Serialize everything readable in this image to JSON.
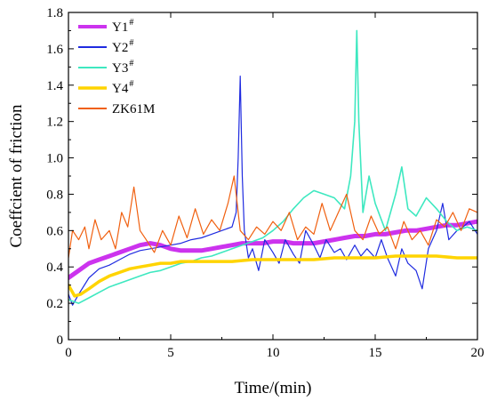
{
  "chart_data": {
    "type": "line",
    "title": "",
    "xlabel": "Time/(min)",
    "ylabel": "Coeffcient of friction",
    "xlim": [
      0,
      20
    ],
    "ylim": [
      0,
      1.8
    ],
    "x_ticks": [
      0,
      5,
      10,
      15,
      20
    ],
    "x_tick_labels": [
      "0",
      "5",
      "10",
      "15",
      "20"
    ],
    "y_ticks": [
      0,
      0.2,
      0.4,
      0.6,
      0.8,
      1.0,
      1.2,
      1.4,
      1.6,
      1.8
    ],
    "y_tick_labels": [
      "0",
      "0.2",
      "0.4",
      "0.6",
      "0.8",
      "1.0",
      "1.2",
      "1.4",
      "1.6",
      "1.8"
    ],
    "grid": false,
    "legend_position": "top-left",
    "series": [
      {
        "name": "Y1",
        "sup": "#",
        "color": "#cc33ee",
        "width": 5,
        "points": [
          [
            0,
            0.34
          ],
          [
            0.5,
            0.38
          ],
          [
            1,
            0.42
          ],
          [
            1.5,
            0.44
          ],
          [
            2,
            0.46
          ],
          [
            2.5,
            0.48
          ],
          [
            3,
            0.5
          ],
          [
            3.5,
            0.52
          ],
          [
            4,
            0.53
          ],
          [
            4.5,
            0.52
          ],
          [
            5,
            0.5
          ],
          [
            5.5,
            0.49
          ],
          [
            6,
            0.49
          ],
          [
            6.5,
            0.49
          ],
          [
            7,
            0.5
          ],
          [
            7.5,
            0.51
          ],
          [
            8,
            0.52
          ],
          [
            8.5,
            0.53
          ],
          [
            9,
            0.53
          ],
          [
            9.5,
            0.53
          ],
          [
            10,
            0.54
          ],
          [
            10.5,
            0.54
          ],
          [
            11,
            0.53
          ],
          [
            11.5,
            0.53
          ],
          [
            12,
            0.53
          ],
          [
            12.5,
            0.54
          ],
          [
            13,
            0.55
          ],
          [
            13.5,
            0.56
          ],
          [
            14,
            0.57
          ],
          [
            14.5,
            0.57
          ],
          [
            15,
            0.58
          ],
          [
            15.5,
            0.58
          ],
          [
            16,
            0.59
          ],
          [
            16.5,
            0.6
          ],
          [
            17,
            0.6
          ],
          [
            17.5,
            0.61
          ],
          [
            18,
            0.62
          ],
          [
            18.5,
            0.63
          ],
          [
            19,
            0.63
          ],
          [
            19.5,
            0.64
          ],
          [
            20,
            0.65
          ]
        ]
      },
      {
        "name": "Y2",
        "sup": "#",
        "color": "#1f2be0",
        "width": 1.2,
        "points": [
          [
            0,
            0.25
          ],
          [
            0.2,
            0.19
          ],
          [
            0.5,
            0.25
          ],
          [
            1,
            0.34
          ],
          [
            1.5,
            0.39
          ],
          [
            2,
            0.41
          ],
          [
            2.5,
            0.44
          ],
          [
            3,
            0.47
          ],
          [
            3.5,
            0.49
          ],
          [
            4,
            0.5
          ],
          [
            4.5,
            0.51
          ],
          [
            5,
            0.52
          ],
          [
            5.5,
            0.53
          ],
          [
            6,
            0.55
          ],
          [
            6.5,
            0.56
          ],
          [
            7,
            0.58
          ],
          [
            7.5,
            0.6
          ],
          [
            8,
            0.62
          ],
          [
            8.2,
            0.7
          ],
          [
            8.3,
            1.0
          ],
          [
            8.4,
            1.45
          ],
          [
            8.5,
            0.9
          ],
          [
            8.6,
            0.6
          ],
          [
            8.8,
            0.45
          ],
          [
            9,
            0.5
          ],
          [
            9.3,
            0.38
          ],
          [
            9.6,
            0.55
          ],
          [
            10,
            0.48
          ],
          [
            10.3,
            0.42
          ],
          [
            10.6,
            0.55
          ],
          [
            11,
            0.47
          ],
          [
            11.3,
            0.42
          ],
          [
            11.6,
            0.6
          ],
          [
            12,
            0.52
          ],
          [
            12.3,
            0.45
          ],
          [
            12.6,
            0.55
          ],
          [
            13,
            0.48
          ],
          [
            13.3,
            0.5
          ],
          [
            13.6,
            0.44
          ],
          [
            14,
            0.52
          ],
          [
            14.3,
            0.46
          ],
          [
            14.6,
            0.5
          ],
          [
            15,
            0.45
          ],
          [
            15.3,
            0.55
          ],
          [
            15.6,
            0.45
          ],
          [
            16,
            0.35
          ],
          [
            16.3,
            0.5
          ],
          [
            16.6,
            0.42
          ],
          [
            17,
            0.38
          ],
          [
            17.3,
            0.28
          ],
          [
            17.6,
            0.5
          ],
          [
            18,
            0.6
          ],
          [
            18.3,
            0.75
          ],
          [
            18.6,
            0.55
          ],
          [
            19,
            0.6
          ],
          [
            19.3,
            0.62
          ],
          [
            19.6,
            0.65
          ],
          [
            20,
            0.58
          ]
        ]
      },
      {
        "name": "Y3",
        "sup": "#",
        "color": "#3ee8c0",
        "width": 1.6,
        "points": [
          [
            0,
            0.22
          ],
          [
            0.5,
            0.2
          ],
          [
            1,
            0.23
          ],
          [
            1.5,
            0.26
          ],
          [
            2,
            0.29
          ],
          [
            2.5,
            0.31
          ],
          [
            3,
            0.33
          ],
          [
            3.5,
            0.35
          ],
          [
            4,
            0.37
          ],
          [
            4.5,
            0.38
          ],
          [
            5,
            0.4
          ],
          [
            5.5,
            0.42
          ],
          [
            6,
            0.43
          ],
          [
            6.5,
            0.45
          ],
          [
            7,
            0.46
          ],
          [
            7.5,
            0.48
          ],
          [
            8,
            0.5
          ],
          [
            8.5,
            0.52
          ],
          [
            9,
            0.54
          ],
          [
            9.5,
            0.56
          ],
          [
            10,
            0.6
          ],
          [
            10.5,
            0.65
          ],
          [
            11,
            0.72
          ],
          [
            11.5,
            0.78
          ],
          [
            12,
            0.82
          ],
          [
            12.5,
            0.8
          ],
          [
            13,
            0.78
          ],
          [
            13.5,
            0.72
          ],
          [
            13.8,
            0.9
          ],
          [
            14,
            1.2
          ],
          [
            14.1,
            1.7
          ],
          [
            14.2,
            1.2
          ],
          [
            14.4,
            0.7
          ],
          [
            14.7,
            0.9
          ],
          [
            15,
            0.75
          ],
          [
            15.5,
            0.6
          ],
          [
            16,
            0.8
          ],
          [
            16.3,
            0.95
          ],
          [
            16.6,
            0.72
          ],
          [
            17,
            0.68
          ],
          [
            17.5,
            0.78
          ],
          [
            18,
            0.72
          ],
          [
            18.5,
            0.65
          ],
          [
            19,
            0.6
          ],
          [
            19.5,
            0.62
          ],
          [
            20,
            0.6
          ]
        ]
      },
      {
        "name": "Y4",
        "sup": "#",
        "color": "#ffd400",
        "width": 3.5,
        "points": [
          [
            0,
            0.3
          ],
          [
            0.3,
            0.24
          ],
          [
            0.6,
            0.25
          ],
          [
            1,
            0.28
          ],
          [
            1.5,
            0.32
          ],
          [
            2,
            0.35
          ],
          [
            2.5,
            0.37
          ],
          [
            3,
            0.39
          ],
          [
            3.5,
            0.4
          ],
          [
            4,
            0.41
          ],
          [
            4.5,
            0.42
          ],
          [
            5,
            0.42
          ],
          [
            5.5,
            0.43
          ],
          [
            6,
            0.43
          ],
          [
            6.5,
            0.43
          ],
          [
            7,
            0.43
          ],
          [
            8,
            0.43
          ],
          [
            9,
            0.44
          ],
          [
            10,
            0.44
          ],
          [
            11,
            0.44
          ],
          [
            12,
            0.44
          ],
          [
            13,
            0.45
          ],
          [
            14,
            0.45
          ],
          [
            15,
            0.45
          ],
          [
            16,
            0.46
          ],
          [
            17,
            0.46
          ],
          [
            18,
            0.46
          ],
          [
            19,
            0.45
          ],
          [
            20,
            0.45
          ]
        ]
      },
      {
        "name": "ZK61M",
        "sup": "",
        "color": "#f06010",
        "width": 1.2,
        "points": [
          [
            0,
            0.45
          ],
          [
            0.2,
            0.6
          ],
          [
            0.5,
            0.55
          ],
          [
            0.8,
            0.62
          ],
          [
            1,
            0.5
          ],
          [
            1.3,
            0.66
          ],
          [
            1.6,
            0.55
          ],
          [
            2,
            0.6
          ],
          [
            2.3,
            0.5
          ],
          [
            2.6,
            0.7
          ],
          [
            2.9,
            0.62
          ],
          [
            3.2,
            0.84
          ],
          [
            3.5,
            0.6
          ],
          [
            3.8,
            0.55
          ],
          [
            4.2,
            0.48
          ],
          [
            4.6,
            0.6
          ],
          [
            5,
            0.52
          ],
          [
            5.4,
            0.68
          ],
          [
            5.8,
            0.56
          ],
          [
            6.2,
            0.72
          ],
          [
            6.6,
            0.58
          ],
          [
            7,
            0.66
          ],
          [
            7.4,
            0.6
          ],
          [
            7.8,
            0.75
          ],
          [
            8.1,
            0.9
          ],
          [
            8.4,
            0.6
          ],
          [
            8.8,
            0.55
          ],
          [
            9.2,
            0.62
          ],
          [
            9.6,
            0.58
          ],
          [
            10,
            0.65
          ],
          [
            10.4,
            0.6
          ],
          [
            10.8,
            0.7
          ],
          [
            11.2,
            0.55
          ],
          [
            11.6,
            0.62
          ],
          [
            12,
            0.58
          ],
          [
            12.4,
            0.75
          ],
          [
            12.8,
            0.6
          ],
          [
            13.2,
            0.7
          ],
          [
            13.6,
            0.8
          ],
          [
            14,
            0.6
          ],
          [
            14.4,
            0.55
          ],
          [
            14.8,
            0.68
          ],
          [
            15.2,
            0.58
          ],
          [
            15.6,
            0.62
          ],
          [
            16,
            0.5
          ],
          [
            16.4,
            0.65
          ],
          [
            16.8,
            0.55
          ],
          [
            17.2,
            0.6
          ],
          [
            17.6,
            0.52
          ],
          [
            18,
            0.66
          ],
          [
            18.4,
            0.62
          ],
          [
            18.8,
            0.7
          ],
          [
            19.2,
            0.6
          ],
          [
            19.6,
            0.72
          ],
          [
            20,
            0.7
          ]
        ]
      }
    ]
  }
}
